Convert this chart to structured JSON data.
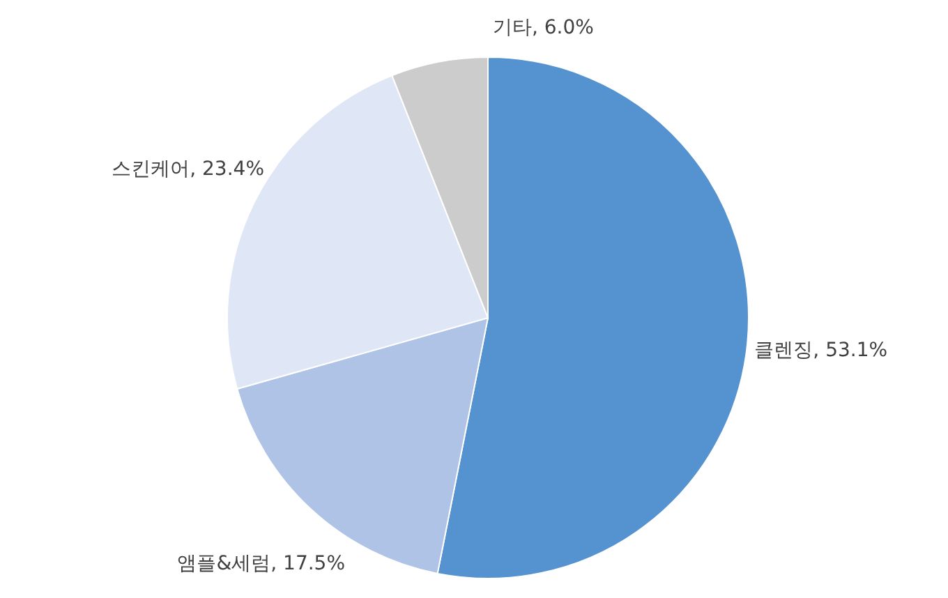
{
  "chart_data": {
    "type": "pie",
    "categories": [
      "클렌징",
      "앰플&세럼",
      "스킨케어",
      "기타"
    ],
    "values": [
      53.1,
      17.5,
      23.4,
      6.0
    ],
    "value_labels": [
      "53.1%",
      "17.5%",
      "23.4%",
      "6.0%"
    ],
    "colors": [
      "#5592d0",
      "#aec3e6",
      "#dfe6f6",
      "#cccccc"
    ]
  }
}
